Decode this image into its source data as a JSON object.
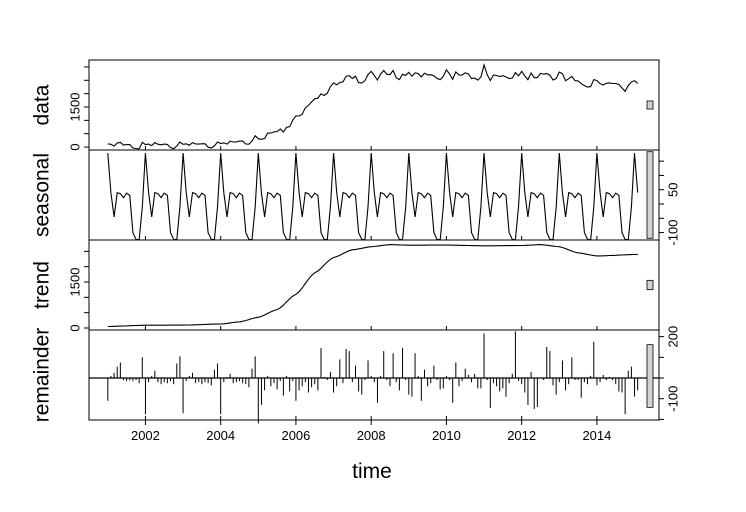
{
  "chart_data": {
    "type": "line",
    "xlabel": "time",
    "x_start": "2001-01",
    "x_end": "2015-02",
    "frequency": "monthly",
    "xlim": [
      2000.5,
      2015.65
    ],
    "x_ticks": [
      2002,
      2004,
      2006,
      2008,
      2010,
      2012,
      2014
    ],
    "grid": false,
    "panels": [
      {
        "name": "data",
        "ylabel": "data",
        "axis_side": "left",
        "ylim": [
          -110,
          3260
        ],
        "tick_labels": [
          "0",
          "1500"
        ],
        "tick_values": [
          0,
          1500
        ],
        "minor_ticks": [
          500,
          1000,
          2000,
          2500,
          3000
        ],
        "style": "line"
      },
      {
        "name": "seasonal",
        "ylabel": "seasonal",
        "axis_side": "right",
        "ylim": [
          -126,
          189
        ],
        "tick_labels": [
          "-100",
          "50"
        ],
        "tick_values": [
          -100,
          50
        ],
        "minor_ticks": [
          -50,
          0,
          100,
          150
        ],
        "style": "line"
      },
      {
        "name": "trend",
        "ylabel": "trend",
        "axis_side": "left",
        "ylim": [
          -65,
          2870
        ],
        "tick_labels": [
          "0",
          "1500"
        ],
        "tick_values": [
          0,
          1500
        ],
        "minor_ticks": [
          500,
          1000,
          2000,
          2500
        ],
        "style": "line"
      },
      {
        "name": "remainder",
        "ylabel": "remainder",
        "axis_side": "right",
        "ylim": [
          -203,
          232
        ],
        "tick_labels": [
          "-100",
          "200"
        ],
        "tick_values": [
          -100,
          200
        ],
        "minor_ticks": [
          0,
          100,
          -200
        ],
        "style": "bars"
      }
    ],
    "seasonal_pattern": [
      178,
      40,
      -45,
      40,
      36,
      22,
      38,
      30,
      -100,
      -124,
      -125,
      -10
    ],
    "trend_knots": [
      [
        2001.0,
        50
      ],
      [
        2002.0,
        90
      ],
      [
        2003.0,
        95
      ],
      [
        2004.0,
        130
      ],
      [
        2004.5,
        200
      ],
      [
        2005.0,
        350
      ],
      [
        2005.5,
        600
      ],
      [
        2006.0,
        1100
      ],
      [
        2006.5,
        1800
      ],
      [
        2007.0,
        2300
      ],
      [
        2007.5,
        2550
      ],
      [
        2008.0,
        2650
      ],
      [
        2008.5,
        2720
      ],
      [
        2009.0,
        2700
      ],
      [
        2010.0,
        2705
      ],
      [
        2011.0,
        2680
      ],
      [
        2012.0,
        2690
      ],
      [
        2012.5,
        2720
      ],
      [
        2013.0,
        2650
      ],
      [
        2013.5,
        2450
      ],
      [
        2014.0,
        2350
      ],
      [
        2015.1,
        2400
      ]
    ],
    "remainder": [
      -110,
      10,
      25,
      55,
      75,
      -10,
      -15,
      -12,
      -15,
      -10,
      -25,
      100,
      -175,
      -20,
      10,
      35,
      -20,
      -30,
      -20,
      -25,
      -15,
      -30,
      70,
      105,
      -170,
      -15,
      10,
      25,
      -25,
      -20,
      -30,
      -20,
      -25,
      -35,
      40,
      70,
      -175,
      -20,
      5,
      20,
      -25,
      -20,
      -15,
      -25,
      -30,
      -45,
      45,
      105,
      -220,
      -130,
      -60,
      10,
      -40,
      -25,
      -55,
      -15,
      -85,
      10,
      -65,
      -15,
      -110,
      -60,
      -40,
      -20,
      -70,
      -45,
      -30,
      -60,
      145,
      5,
      -10,
      30,
      -70,
      -40,
      90,
      -25,
      140,
      130,
      -20,
      60,
      -65,
      -80,
      -10,
      85,
      10,
      -20,
      -120,
      10,
      130,
      -10,
      -40,
      120,
      -20,
      -60,
      145,
      -10,
      -80,
      -90,
      120,
      10,
      -110,
      40,
      -40,
      -25,
      60,
      -10,
      -55,
      -50,
      10,
      -10,
      -120,
      75,
      -40,
      -15,
      45,
      15,
      -20,
      20,
      -50,
      -50,
      215,
      -10,
      -145,
      -25,
      -40,
      -65,
      -50,
      -90,
      -25,
      20,
      225,
      -15,
      -30,
      -70,
      -130,
      30,
      -150,
      -140,
      0,
      -10,
      150,
      130,
      -35,
      -80,
      -20,
      85,
      -60,
      -30,
      100,
      -10,
      -10,
      -95,
      -20,
      -30,
      10,
      175,
      -35,
      -20,
      15,
      -10,
      5,
      -10,
      -30,
      -65,
      -70,
      -175,
      35,
      55,
      -90,
      -60
    ],
    "scale_bar_color": "#d3d3d3",
    "line_color": "#000000"
  }
}
